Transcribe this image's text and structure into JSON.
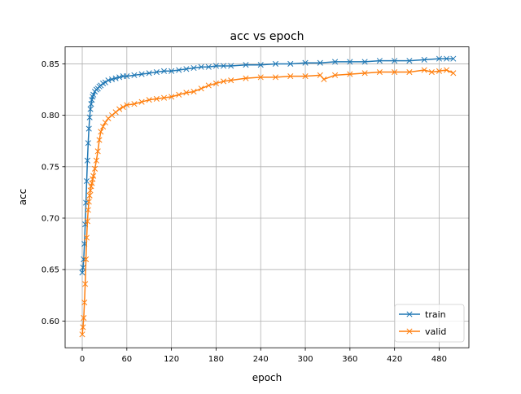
{
  "chart_data": {
    "type": "line",
    "title": "acc vs epoch",
    "xlabel": "epoch",
    "ylabel": "acc",
    "xlim": [
      -23,
      520
    ],
    "ylim": [
      0.574,
      0.8665
    ],
    "xticks": [
      0,
      60,
      120,
      180,
      240,
      300,
      360,
      420,
      480
    ],
    "xtick_labels": [
      "0",
      "60",
      "120",
      "180",
      "240",
      "300",
      "360",
      "420",
      "480"
    ],
    "yticks": [
      0.6,
      0.65,
      0.7,
      0.75,
      0.8,
      0.85
    ],
    "ytick_labels": [
      "0.60",
      "0.65",
      "0.70",
      "0.75",
      "0.80",
      "0.85"
    ],
    "grid": true,
    "legend_position": "lower-right",
    "marker": "x",
    "series": [
      {
        "name": "train",
        "color": "#1f77b4",
        "x": [
          0,
          1,
          2,
          3,
          4,
          5,
          6,
          7,
          8,
          9,
          10,
          11,
          12,
          13,
          14,
          15,
          17,
          19,
          21,
          23,
          25,
          28,
          31,
          35,
          40,
          45,
          50,
          55,
          60,
          70,
          80,
          90,
          100,
          110,
          120,
          130,
          140,
          150,
          160,
          170,
          180,
          190,
          200,
          220,
          240,
          260,
          280,
          300,
          320,
          340,
          360,
          380,
          400,
          420,
          440,
          460,
          480,
          490,
          499
        ],
        "y": [
          0.647,
          0.652,
          0.66,
          0.675,
          0.694,
          0.715,
          0.736,
          0.756,
          0.773,
          0.787,
          0.798,
          0.806,
          0.811,
          0.815,
          0.818,
          0.82,
          0.823,
          0.825,
          0.826,
          0.828,
          0.829,
          0.831,
          0.832,
          0.834,
          0.835,
          0.836,
          0.837,
          0.838,
          0.838,
          0.839,
          0.84,
          0.841,
          0.842,
          0.843,
          0.843,
          0.844,
          0.845,
          0.846,
          0.847,
          0.847,
          0.848,
          0.848,
          0.848,
          0.849,
          0.849,
          0.85,
          0.85,
          0.851,
          0.851,
          0.852,
          0.852,
          0.852,
          0.853,
          0.853,
          0.853,
          0.854,
          0.855,
          0.855,
          0.855
        ]
      },
      {
        "name": "valid",
        "color": "#ff7f0e",
        "x": [
          0,
          1,
          2,
          3,
          4,
          5,
          6,
          7,
          8,
          9,
          10,
          11,
          12,
          13,
          14,
          15,
          17,
          19,
          21,
          23,
          25,
          28,
          31,
          35,
          40,
          45,
          50,
          55,
          60,
          70,
          80,
          90,
          100,
          110,
          120,
          130,
          140,
          150,
          160,
          170,
          180,
          190,
          200,
          220,
          240,
          260,
          280,
          300,
          320,
          325,
          340,
          360,
          380,
          400,
          420,
          440,
          460,
          470,
          480,
          490,
          499
        ],
        "y": [
          0.587,
          0.594,
          0.603,
          0.618,
          0.636,
          0.66,
          0.681,
          0.697,
          0.708,
          0.716,
          0.722,
          0.727,
          0.731,
          0.734,
          0.738,
          0.741,
          0.748,
          0.756,
          0.765,
          0.776,
          0.784,
          0.789,
          0.793,
          0.797,
          0.8,
          0.803,
          0.806,
          0.808,
          0.81,
          0.811,
          0.813,
          0.815,
          0.816,
          0.817,
          0.818,
          0.82,
          0.822,
          0.823,
          0.826,
          0.829,
          0.831,
          0.833,
          0.834,
          0.836,
          0.837,
          0.837,
          0.838,
          0.838,
          0.839,
          0.835,
          0.839,
          0.84,
          0.841,
          0.842,
          0.842,
          0.842,
          0.844,
          0.842,
          0.843,
          0.844,
          0.841
        ]
      }
    ]
  }
}
